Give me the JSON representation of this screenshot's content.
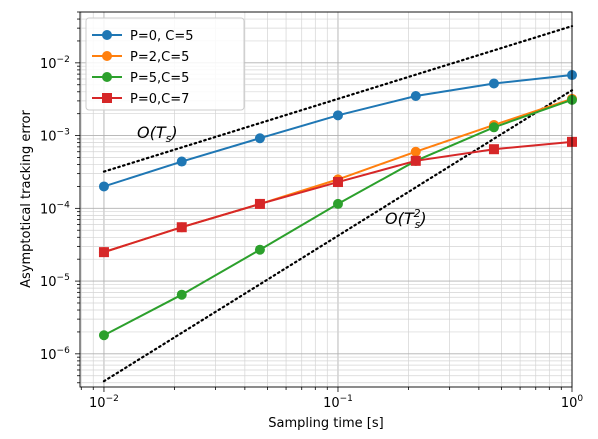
{
  "chart_data": {
    "type": "line",
    "xscale": "log",
    "yscale": "log",
    "xlabel": "Sampling time [s]",
    "ylabel": "Asymptotical tracking error",
    "xlim": [
      0.0079,
      1.0
    ],
    "ylim": [
      3.5e-07,
      0.05
    ],
    "grid": true,
    "legend_position": "top-left",
    "x_ticks": [
      {
        "value": 0.01,
        "base": "10",
        "exp": "−2"
      },
      {
        "value": 0.1,
        "base": "10",
        "exp": "−1"
      },
      {
        "value": 1,
        "base": "10",
        "exp": "0"
      }
    ],
    "y_ticks": [
      {
        "value": 1e-06,
        "base": "10",
        "exp": "−6"
      },
      {
        "value": 1e-05,
        "base": "10",
        "exp": "−5"
      },
      {
        "value": 0.0001,
        "base": "10",
        "exp": "−4"
      },
      {
        "value": 0.001,
        "base": "10",
        "exp": "−3"
      },
      {
        "value": 0.01,
        "base": "10",
        "exp": "−2"
      }
    ],
    "x": [
      0.01,
      0.0215,
      0.0464,
      0.1,
      0.215,
      0.464,
      1.0
    ],
    "series": [
      {
        "name": "P=0, C=5",
        "color": "#1f77b4",
        "marker": "circle",
        "values": [
          0.0002,
          0.00044,
          0.00092,
          0.0019,
          0.0035,
          0.0052,
          0.0068
        ]
      },
      {
        "name": "P=2,C=5",
        "color": "#ff7f0e",
        "marker": "circle",
        "values": [
          2.5e-05,
          5.5e-05,
          0.000115,
          0.00025,
          0.0006,
          0.0014,
          0.0032
        ]
      },
      {
        "name": "P=5,C=5",
        "color": "#2ca02c",
        "marker": "circle",
        "values": [
          1.8e-06,
          6.5e-06,
          2.7e-05,
          0.000115,
          0.00045,
          0.0013,
          0.0031
        ]
      },
      {
        "name": "P=0,C=7",
        "color": "#d62728",
        "marker": "square",
        "values": [
          2.5e-05,
          5.5e-05,
          0.000115,
          0.00023,
          0.00045,
          0.00065,
          0.00082
        ]
      }
    ],
    "reference_lines": [
      {
        "label": "O(T_s)",
        "style": "dotted",
        "color": "#000000",
        "x": [
          0.01,
          1.0
        ],
        "values": [
          0.00032,
          0.032
        ]
      },
      {
        "label": "O(T_s^2)",
        "style": "dotted",
        "color": "#000000",
        "x": [
          0.01,
          1.0
        ],
        "values": [
          4.2e-07,
          0.0042
        ]
      }
    ],
    "annotations": {
      "O1": {
        "main": "O(T",
        "sub": "s",
        "close": ")"
      },
      "O2": {
        "main": "O(T",
        "sup": "2",
        "sub": "s",
        "close": ")"
      }
    }
  }
}
